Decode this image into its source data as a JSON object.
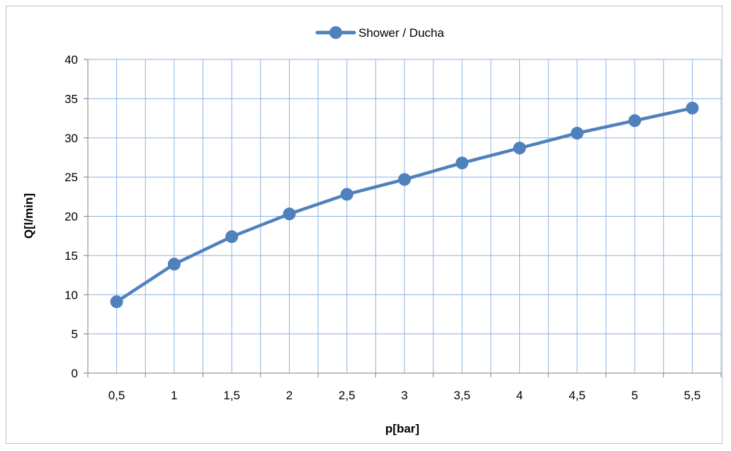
{
  "chart_data": {
    "type": "line",
    "x": [
      "0,5",
      "1",
      "1,5",
      "2",
      "2,5",
      "3",
      "3,5",
      "4",
      "4,5",
      "5",
      "5,5"
    ],
    "series": [
      {
        "name": "Shower / Ducha",
        "values": [
          9.1,
          13.9,
          17.4,
          20.3,
          22.8,
          24.7,
          26.8,
          28.7,
          30.6,
          32.2,
          33.8
        ],
        "color": "#4f81bd",
        "marker": "circle"
      }
    ],
    "xlabel": "p[bar]",
    "ylabel": "Q[l/min]",
    "ylim": [
      0,
      40
    ],
    "yticks": [
      0,
      5,
      10,
      15,
      20,
      25,
      30,
      35,
      40
    ],
    "grid": true,
    "legend_position": "top"
  }
}
